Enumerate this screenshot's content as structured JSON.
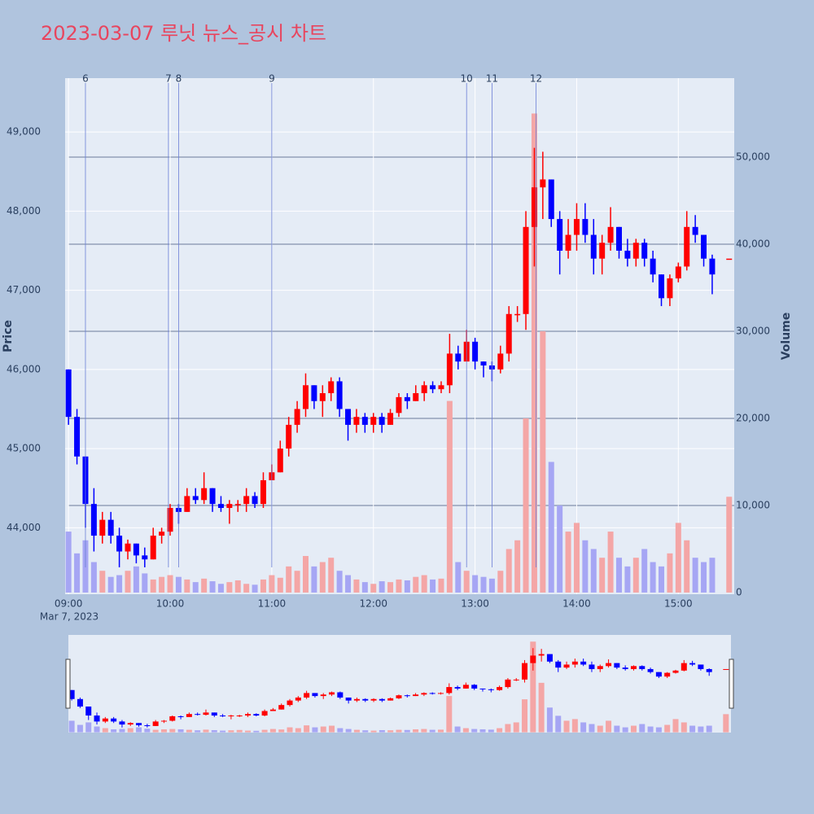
{
  "chart_data": {
    "type": "candlestick",
    "title": "2023-03-07 루닛 뉴스_공시 차트",
    "ylabel": "Price",
    "y2label": "Volume",
    "date_label": "Mar 7, 2023",
    "increasing_color": "#ff0000",
    "decreasing_color": "#0000ff",
    "increasing_volume_color": "#f4a6a6",
    "decreasing_volume_color": "#a6a6f4",
    "xlim": [
      "2023-03-07 08:58",
      "2023-03-07 15:33"
    ],
    "xticks": [
      {
        "value": "2023-03-07 09:00",
        "label": "09:00"
      },
      {
        "value": "2023-03-07 10:00",
        "label": "10:00"
      },
      {
        "value": "2023-03-07 11:00",
        "label": "11:00"
      },
      {
        "value": "2023-03-07 12:00",
        "label": "12:00"
      },
      {
        "value": "2023-03-07 13:00",
        "label": "13:00"
      },
      {
        "value": "2023-03-07 14:00",
        "label": "14:00"
      },
      {
        "value": "2023-03-07 15:00",
        "label": "15:00"
      }
    ],
    "ylim": [
      43160,
      49680
    ],
    "yticks": [
      {
        "value": 44000,
        "label": "44,000"
      },
      {
        "value": 45000,
        "label": "45,000"
      },
      {
        "value": 46000,
        "label": "46,000"
      },
      {
        "value": 47000,
        "label": "47,000"
      },
      {
        "value": 48000,
        "label": "48,000"
      },
      {
        "value": 49000,
        "label": "49,000"
      }
    ],
    "y2lim": [
      -190,
      59060
    ],
    "y2ticks": [
      0,
      {
        "value": 10000,
        "label": "10,000"
      },
      {
        "value": 20000,
        "label": "20,000"
      },
      {
        "value": 30000,
        "label": "30,000"
      },
      {
        "value": 40000,
        "label": "40,000"
      },
      {
        "value": 50000,
        "label": "50,000"
      }
    ],
    "events": [
      {
        "label": "6",
        "x": "2023-03-07 09:10"
      },
      {
        "label": "7",
        "x": "2023-03-07 09:59"
      },
      {
        "label": "8",
        "x": "2023-03-07 10:05"
      },
      {
        "label": "9",
        "x": "2023-03-07 11:00"
      },
      {
        "label": "10",
        "x": "2023-03-07 12:55"
      },
      {
        "label": "11",
        "x": "2023-03-07 13:10"
      },
      {
        "label": "12",
        "x": "2023-03-07 13:36"
      }
    ],
    "x": [
      "2023-03-07 09:00",
      "2023-03-07 09:05",
      "2023-03-07 09:10",
      "2023-03-07 09:15",
      "2023-03-07 09:20",
      "2023-03-07 09:25",
      "2023-03-07 09:30",
      "2023-03-07 09:35",
      "2023-03-07 09:40",
      "2023-03-07 09:45",
      "2023-03-07 09:50",
      "2023-03-07 09:55",
      "2023-03-07 10:00",
      "2023-03-07 10:05",
      "2023-03-07 10:10",
      "2023-03-07 10:15",
      "2023-03-07 10:20",
      "2023-03-07 10:25",
      "2023-03-07 10:30",
      "2023-03-07 10:35",
      "2023-03-07 10:40",
      "2023-03-07 10:45",
      "2023-03-07 10:50",
      "2023-03-07 10:55",
      "2023-03-07 11:00",
      "2023-03-07 11:05",
      "2023-03-07 11:10",
      "2023-03-07 11:15",
      "2023-03-07 11:20",
      "2023-03-07 11:25",
      "2023-03-07 11:30",
      "2023-03-07 11:35",
      "2023-03-07 11:40",
      "2023-03-07 11:45",
      "2023-03-07 11:50",
      "2023-03-07 11:55",
      "2023-03-07 12:00",
      "2023-03-07 12:05",
      "2023-03-07 12:10",
      "2023-03-07 12:15",
      "2023-03-07 12:20",
      "2023-03-07 12:25",
      "2023-03-07 12:30",
      "2023-03-07 12:35",
      "2023-03-07 12:40",
      "2023-03-07 12:45",
      "2023-03-07 12:50",
      "2023-03-07 12:55",
      "2023-03-07 13:00",
      "2023-03-07 13:05",
      "2023-03-07 13:10",
      "2023-03-07 13:15",
      "2023-03-07 13:20",
      "2023-03-07 13:25",
      "2023-03-07 13:30",
      "2023-03-07 13:35",
      "2023-03-07 13:40",
      "2023-03-07 13:45",
      "2023-03-07 13:50",
      "2023-03-07 13:55",
      "2023-03-07 14:00",
      "2023-03-07 14:05",
      "2023-03-07 14:10",
      "2023-03-07 14:15",
      "2023-03-07 14:20",
      "2023-03-07 14:25",
      "2023-03-07 14:30",
      "2023-03-07 14:35",
      "2023-03-07 14:40",
      "2023-03-07 14:45",
      "2023-03-07 14:50",
      "2023-03-07 14:55",
      "2023-03-07 15:00",
      "2023-03-07 15:05",
      "2023-03-07 15:10",
      "2023-03-07 15:15",
      "2023-03-07 15:20",
      "2023-03-07 15:30"
    ],
    "open": [
      46000,
      45400,
      44900,
      44300,
      43900,
      44100,
      43900,
      43700,
      43800,
      43650,
      43600,
      43900,
      43950,
      44250,
      44200,
      44400,
      44350,
      44500,
      44300,
      44250,
      44300,
      44300,
      44400,
      44300,
      44600,
      44700,
      45000,
      45300,
      45500,
      45800,
      45600,
      45700,
      45850,
      45500,
      45300,
      45400,
      45300,
      45400,
      45300,
      45450,
      45650,
      45600,
      45700,
      45800,
      45750,
      45800,
      46200,
      46100,
      46350,
      46100,
      46050,
      46000,
      46200,
      46700,
      46700,
      47800,
      48300,
      48400,
      47900,
      47500,
      47700,
      47900,
      47700,
      47400,
      47600,
      47800,
      47500,
      47400,
      47600,
      47400,
      47200,
      46900,
      47150,
      47300,
      47800,
      47700,
      47400,
      47400
    ],
    "high": [
      46000,
      45500,
      44900,
      44500,
      44200,
      44200,
      44000,
      43850,
      43800,
      43750,
      44000,
      44000,
      44300,
      44300,
      44500,
      44500,
      44700,
      44500,
      44400,
      44350,
      44350,
      44500,
      44450,
      44700,
      44800,
      45100,
      45400,
      45600,
      45950,
      45800,
      45800,
      45900,
      45900,
      45500,
      45500,
      45450,
      45450,
      45450,
      45500,
      45700,
      45700,
      45800,
      45850,
      45850,
      45850,
      46450,
      46300,
      46500,
      46400,
      46100,
      46100,
      46300,
      46800,
      46800,
      48000,
      48800,
      48750,
      48400,
      48000,
      47900,
      48100,
      48100,
      47900,
      47700,
      48050,
      47800,
      47650,
      47650,
      47650,
      47500,
      47200,
      47200,
      47350,
      48000,
      47950,
      47700,
      47450,
      47400
    ],
    "low": [
      45300,
      44800,
      44000,
      43700,
      43800,
      43800,
      43500,
      43600,
      43550,
      43500,
      43600,
      43800,
      43900,
      44050,
      44200,
      44300,
      44300,
      44200,
      44200,
      44050,
      44200,
      44200,
      44250,
      44250,
      44600,
      44700,
      44900,
      45200,
      45400,
      45500,
      45400,
      45600,
      45400,
      45100,
      45200,
      45200,
      45200,
      45200,
      45300,
      45400,
      45500,
      45600,
      45600,
      45700,
      45700,
      45700,
      46000,
      46100,
      46000,
      45900,
      45850,
      45950,
      46100,
      46600,
      46500,
      47300,
      47900,
      47800,
      47200,
      47400,
      47500,
      47600,
      47200,
      47200,
      47500,
      47400,
      47300,
      47300,
      47300,
      47100,
      46800,
      46800,
      47100,
      47250,
      47600,
      47300,
      46950,
      47400
    ],
    "close": [
      45400,
      44900,
      44300,
      43900,
      44100,
      43900,
      43700,
      43800,
      43650,
      43600,
      43900,
      43950,
      44250,
      44200,
      44400,
      44350,
      44500,
      44300,
      44250,
      44300,
      44300,
      44400,
      44300,
      44600,
      44700,
      45000,
      45300,
      45500,
      45800,
      45600,
      45700,
      45850,
      45500,
      45300,
      45400,
      45300,
      45400,
      45300,
      45450,
      45650,
      45600,
      45700,
      45800,
      45750,
      45800,
      46200,
      46100,
      46350,
      46100,
      46050,
      46000,
      46200,
      46700,
      46700,
      47800,
      48300,
      48400,
      47900,
      47500,
      47700,
      47900,
      47700,
      47400,
      47600,
      47800,
      47500,
      47400,
      47600,
      47400,
      47200,
      46900,
      47150,
      47300,
      47800,
      47700,
      47400,
      47200,
      47400
    ],
    "volume": [
      7000,
      4500,
      6000,
      3500,
      2500,
      1800,
      2000,
      2500,
      3000,
      2200,
      1500,
      1800,
      2000,
      1800,
      1500,
      1200,
      1600,
      1300,
      1000,
      1200,
      1400,
      1000,
      900,
      1500,
      2000,
      1700,
      3000,
      2500,
      4200,
      3000,
      3500,
      4000,
      2500,
      2000,
      1500,
      1200,
      1000,
      1300,
      1200,
      1500,
      1400,
      1800,
      2000,
      1500,
      1600,
      22000,
      3500,
      2500,
      2000,
      1800,
      1600,
      2500,
      5000,
      6000,
      20000,
      55000,
      30000,
      15000,
      10000,
      7000,
      8000,
      6000,
      5000,
      4000,
      7000,
      4000,
      3000,
      4000,
      5000,
      3500,
      3000,
      4500,
      8000,
      6000,
      4000,
      3500,
      4000,
      11000
    ]
  }
}
